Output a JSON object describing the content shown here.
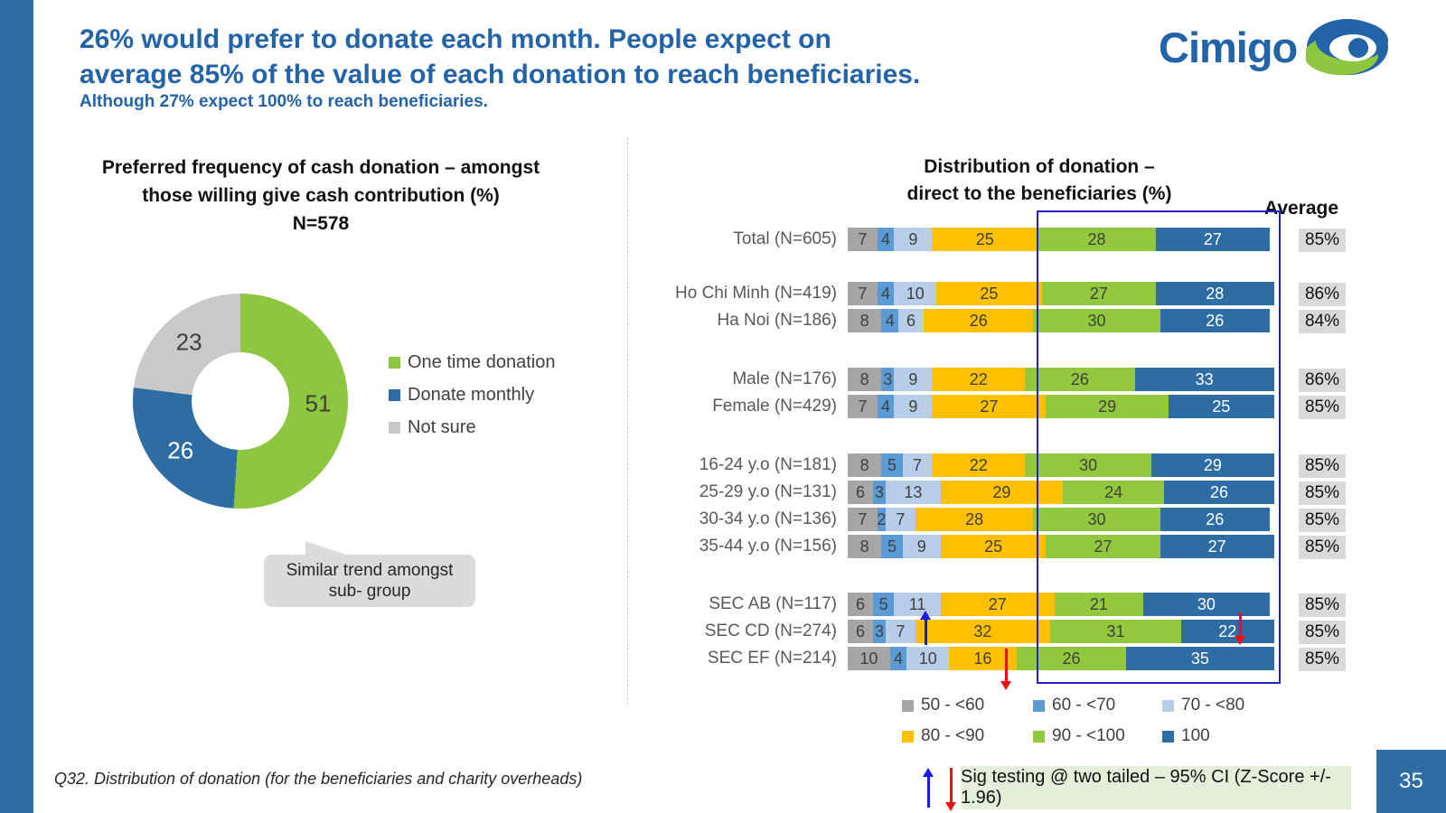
{
  "header": {
    "title_lines": [
      "26% would prefer to donate each month.  People expect on",
      "average 85% of the value of each donation to reach beneficiaries."
    ],
    "subtitle": "Although 27% expect 100% to reach beneficiaries.",
    "logo": "Cimigo"
  },
  "chart_data": [
    {
      "type": "pie",
      "variant": "donut",
      "title_lines": [
        "Preferred frequency of cash donation – amongst",
        "those willing give cash contribution (%)",
        "N=578"
      ],
      "labels": [
        "One time donation",
        "Donate monthly",
        "Not sure"
      ],
      "values": [
        51,
        26,
        23
      ],
      "colors": [
        "#8DC63F",
        "#2E6DA4",
        "#C9C9C9"
      ],
      "legend_position": "right",
      "callout_lines": [
        "Similar trend amongst",
        "sub- group"
      ]
    },
    {
      "type": "bar",
      "orientation": "horizontal-stacked",
      "title_lines": [
        "Distribution of donation –",
        "direct to the beneficiaries (%)"
      ],
      "average_header": "Average",
      "xlim": [
        0,
        100
      ],
      "categories": [
        "Total (N=605)",
        "Ho Chi Minh (N=419)",
        "Ha Noi (N=186)",
        "Male (N=176)",
        "Female (N=429)",
        "16-24 y.o (N=181)",
        "25-29 y.o (N=131)",
        "30-34 y.o (N=136)",
        "35-44 y.o (N=156)",
        "SEC AB (N=117)",
        "SEC CD (N=274)",
        "SEC EF (N=214)"
      ],
      "series": [
        {
          "name": "50 - <60",
          "color": "#A6A6A6",
          "values": [
            7,
            7,
            8,
            8,
            7,
            8,
            6,
            7,
            8,
            6,
            6,
            10
          ]
        },
        {
          "name": "60 - <70",
          "color": "#5B9BD5",
          "values": [
            4,
            4,
            4,
            3,
            4,
            5,
            3,
            2,
            5,
            5,
            3,
            4
          ]
        },
        {
          "name": "70 - <80",
          "color": "#B7CDE8",
          "values": [
            9,
            10,
            6,
            9,
            9,
            7,
            13,
            7,
            9,
            11,
            7,
            10
          ]
        },
        {
          "name": "80 - <90",
          "color": "#FFC000",
          "values": [
            25,
            25,
            26,
            22,
            27,
            22,
            29,
            28,
            25,
            27,
            32,
            16
          ]
        },
        {
          "name": "90 - <100",
          "color": "#92C83E",
          "values": [
            28,
            27,
            30,
            26,
            29,
            30,
            24,
            30,
            27,
            21,
            31,
            26
          ]
        },
        {
          "name": "100",
          "color": "#2E6DA4",
          "values": [
            27,
            28,
            26,
            33,
            25,
            29,
            26,
            26,
            27,
            30,
            22,
            35
          ]
        }
      ],
      "averages": [
        "85%",
        "86%",
        "84%",
        "86%",
        "85%",
        "85%",
        "85%",
        "85%",
        "85%",
        "85%",
        "85%",
        "85%"
      ],
      "sig_markers": [
        {
          "category": "SEC CD (N=274)",
          "segment": "80 - <90",
          "direction": "up",
          "color": "blue"
        },
        {
          "category": "SEC CD (N=274)",
          "segment": "100",
          "direction": "down",
          "color": "red"
        },
        {
          "category": "SEC EF (N=214)",
          "segment": "80 - <90",
          "direction": "down",
          "color": "red"
        }
      ]
    }
  ],
  "footer": {
    "note": "Q32. Distribution of donation (for the beneficiaries and charity overheads)",
    "sig_note": "Sig testing @ two tailed – 95% CI (Z-Score +/- 1.96)",
    "page_number": "35"
  },
  "colors": {
    "accent_blue": "#2363A8",
    "highlight_box": "#2222CC",
    "sig_up": "#1A1AE6",
    "sig_down": "#EE1111"
  }
}
